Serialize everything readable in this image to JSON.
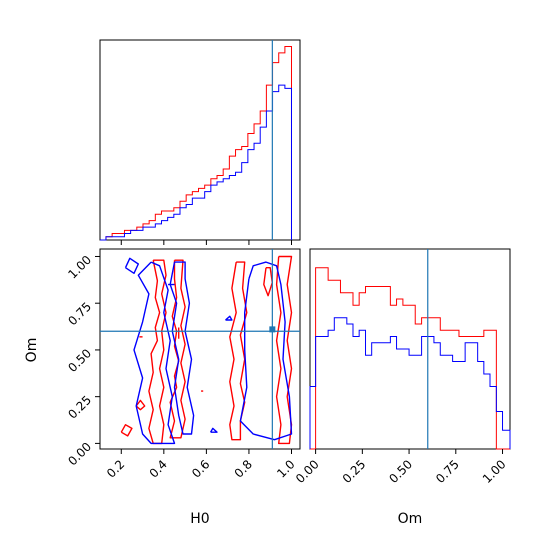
{
  "chart_data": {
    "type": "corner",
    "parameters": [
      "H0",
      "Om"
    ],
    "truths": {
      "H0": 0.91,
      "Om": 0.6
    },
    "colors": {
      "series_a": "#ff0000",
      "series_b": "#0000ff",
      "truth": "#1f77b4",
      "axes": "#000000"
    },
    "panels": [
      {
        "name": "H0-marginal",
        "type": "histogram",
        "xlim": [
          0.1,
          1.04
        ],
        "ylim": [
          0,
          62
        ],
        "bin_edges": [
          0.1,
          0.128,
          0.157,
          0.186,
          0.215,
          0.244,
          0.273,
          0.302,
          0.331,
          0.36,
          0.389,
          0.418,
          0.447,
          0.476,
          0.505,
          0.534,
          0.563,
          0.592,
          0.621,
          0.65,
          0.679,
          0.708,
          0.737,
          0.766,
          0.795,
          0.824,
          0.853,
          0.882,
          0.911,
          0.94,
          0.969,
          1.0
        ],
        "series": [
          {
            "color": "red",
            "counts": [
              0,
              1,
              2,
              2,
              3,
              3,
              4,
              5,
              6,
              8,
              9,
              9,
              10,
              12,
              14,
              15,
              16,
              17,
              19,
              20,
              22,
              26,
              28,
              29,
              33,
              36,
              40,
              48,
              55,
              58,
              60
            ]
          },
          {
            "color": "blue",
            "counts": [
              0,
              1,
              1,
              1,
              2,
              3,
              3,
              4,
              4,
              5,
              6,
              7,
              8,
              10,
              11,
              13,
              13,
              15,
              17,
              18,
              19,
              20,
              21,
              24,
              28,
              30,
              35,
              40,
              46,
              48,
              47
            ]
          }
        ],
        "truth_x": 0.91,
        "x_ticks": [
          0.2,
          0.4,
          0.6,
          0.8,
          1.0
        ]
      },
      {
        "name": "H0-vs-Om-contour",
        "type": "contour",
        "xlim": [
          0.1,
          1.04
        ],
        "ylim": [
          -0.03,
          1.04
        ],
        "x_ticks": [
          "0.2",
          "0.4",
          "0.6",
          "0.8",
          "1.0"
        ],
        "y_ticks": [
          "0.00",
          "0.25",
          "0.50",
          "0.75",
          "1.00"
        ],
        "truth": [
          0.91,
          0.6
        ],
        "marker": [
          0.91,
          0.61
        ],
        "series": [
          {
            "color": "red",
            "contours": [
              [
                [
                  0.35,
                  0.98
                ],
                [
                  0.37,
                  0.87
                ],
                [
                  0.36,
                  0.78
                ],
                [
                  0.38,
                  0.7
                ],
                [
                  0.36,
                  0.62
                ],
                [
                  0.37,
                  0.55
                ],
                [
                  0.34,
                  0.48
                ],
                [
                  0.35,
                  0.38
                ],
                [
                  0.33,
                  0.28
                ],
                [
                  0.35,
                  0.18
                ],
                [
                  0.33,
                  0.08
                ],
                [
                  0.35,
                  0.0
                ],
                [
                  0.39,
                  0.0
                ],
                [
                  0.4,
                  0.1
                ],
                [
                  0.38,
                  0.2
                ],
                [
                  0.4,
                  0.3
                ],
                [
                  0.38,
                  0.4
                ],
                [
                  0.4,
                  0.5
                ],
                [
                  0.39,
                  0.6
                ],
                [
                  0.41,
                  0.7
                ],
                [
                  0.39,
                  0.8
                ],
                [
                  0.41,
                  0.9
                ],
                [
                  0.4,
                  0.98
                ],
                [
                  0.35,
                  0.98
                ]
              ],
              [
                [
                  0.45,
                  0.98
                ],
                [
                  0.45,
                  0.88
                ],
                [
                  0.46,
                  0.78
                ],
                [
                  0.44,
                  0.68
                ],
                [
                  0.46,
                  0.6
                ],
                [
                  0.45,
                  0.52
                ],
                [
                  0.47,
                  0.44
                ],
                [
                  0.45,
                  0.36
                ],
                [
                  0.46,
                  0.3
                ],
                [
                  0.43,
                  0.22
                ],
                [
                  0.45,
                  0.12
                ],
                [
                  0.43,
                  0.03
                ],
                [
                  0.48,
                  0.03
                ],
                [
                  0.5,
                  0.13
                ],
                [
                  0.48,
                  0.23
                ],
                [
                  0.5,
                  0.33
                ],
                [
                  0.48,
                  0.43
                ],
                [
                  0.5,
                  0.53
                ],
                [
                  0.48,
                  0.63
                ],
                [
                  0.5,
                  0.73
                ],
                [
                  0.48,
                  0.83
                ],
                [
                  0.49,
                  0.98
                ],
                [
                  0.45,
                  0.98
                ]
              ],
              [
                [
                  0.74,
                  0.97
                ],
                [
                  0.72,
                  0.83
                ],
                [
                  0.74,
                  0.7
                ],
                [
                  0.71,
                  0.57
                ],
                [
                  0.73,
                  0.45
                ],
                [
                  0.71,
                  0.33
                ],
                [
                  0.73,
                  0.2
                ],
                [
                  0.71,
                  0.1
                ],
                [
                  0.72,
                  0.02
                ],
                [
                  0.76,
                  0.02
                ],
                [
                  0.76,
                  0.12
                ],
                [
                  0.78,
                  0.22
                ],
                [
                  0.76,
                  0.32
                ],
                [
                  0.78,
                  0.45
                ],
                [
                  0.76,
                  0.58
                ],
                [
                  0.79,
                  0.7
                ],
                [
                  0.77,
                  0.83
                ],
                [
                  0.78,
                  0.97
                ],
                [
                  0.74,
                  0.97
                ]
              ],
              [
                [
                  0.94,
                  1.0
                ],
                [
                  0.93,
                  0.85
                ],
                [
                  0.95,
                  0.7
                ],
                [
                  0.93,
                  0.55
                ],
                [
                  0.95,
                  0.4
                ],
                [
                  0.93,
                  0.25
                ],
                [
                  0.95,
                  0.1
                ],
                [
                  0.94,
                  0.0
                ],
                [
                  0.99,
                  0.0
                ],
                [
                  1.0,
                  0.1
                ],
                [
                  0.98,
                  0.25
                ],
                [
                  1.0,
                  0.4
                ],
                [
                  0.98,
                  0.55
                ],
                [
                  1.0,
                  0.7
                ],
                [
                  0.98,
                  0.85
                ],
                [
                  1.0,
                  1.0
                ],
                [
                  0.94,
                  1.0
                ]
              ],
              [
                [
                  0.88,
                  0.94
                ],
                [
                  0.87,
                  0.85
                ],
                [
                  0.89,
                  0.79
                ],
                [
                  0.91,
                  0.86
                ],
                [
                  0.9,
                  0.94
                ],
                [
                  0.88,
                  0.94
                ]
              ],
              [
                [
                  0.2,
                  0.06
                ],
                [
                  0.22,
                  0.1
                ],
                [
                  0.25,
                  0.08
                ],
                [
                  0.23,
                  0.04
                ],
                [
                  0.2,
                  0.06
                ]
              ],
              [
                [
                  0.27,
                  0.2
                ],
                [
                  0.29,
                  0.23
                ],
                [
                  0.31,
                  0.2
                ],
                [
                  0.29,
                  0.18
                ],
                [
                  0.27,
                  0.2
                ]
              ]
            ]
          },
          {
            "color": "blue",
            "contours": [
              [
                [
                  0.34,
                  0.97
                ],
                [
                  0.28,
                  0.9
                ],
                [
                  0.33,
                  0.8
                ],
                [
                  0.3,
                  0.65
                ],
                [
                  0.26,
                  0.5
                ],
                [
                  0.3,
                  0.35
                ],
                [
                  0.27,
                  0.2
                ],
                [
                  0.3,
                  0.05
                ],
                [
                  0.34,
                  0.0
                ],
                [
                  0.45,
                  0.0
                ],
                [
                  0.42,
                  0.1
                ],
                [
                  0.44,
                  0.25
                ],
                [
                  0.41,
                  0.4
                ],
                [
                  0.43,
                  0.55
                ],
                [
                  0.4,
                  0.7
                ],
                [
                  0.42,
                  0.82
                ],
                [
                  0.38,
                  0.95
                ],
                [
                  0.34,
                  0.97
                ]
              ],
              [
                [
                  0.45,
                  0.97
                ],
                [
                  0.43,
                  0.85
                ],
                [
                  0.46,
                  0.75
                ],
                [
                  0.44,
                  0.6
                ],
                [
                  0.47,
                  0.45
                ],
                [
                  0.45,
                  0.3
                ],
                [
                  0.47,
                  0.15
                ],
                [
                  0.49,
                  0.05
                ],
                [
                  0.53,
                  0.05
                ],
                [
                  0.54,
                  0.15
                ],
                [
                  0.51,
                  0.3
                ],
                [
                  0.53,
                  0.45
                ],
                [
                  0.5,
                  0.6
                ],
                [
                  0.52,
                  0.75
                ],
                [
                  0.5,
                  0.88
                ],
                [
                  0.5,
                  0.97
                ],
                [
                  0.45,
                  0.97
                ]
              ],
              [
                [
                  0.8,
                  0.88
                ],
                [
                  0.78,
                  0.7
                ],
                [
                  0.78,
                  0.5
                ],
                [
                  0.79,
                  0.3
                ],
                [
                  0.76,
                  0.12
                ],
                [
                  0.82,
                  0.05
                ],
                [
                  0.92,
                  0.02
                ],
                [
                  1.0,
                  0.05
                ],
                [
                  0.99,
                  0.25
                ],
                [
                  0.96,
                  0.45
                ],
                [
                  0.97,
                  0.65
                ],
                [
                  0.95,
                  0.85
                ],
                [
                  0.93,
                  0.95
                ],
                [
                  0.88,
                  0.97
                ],
                [
                  0.82,
                  0.95
                ],
                [
                  0.8,
                  0.88
                ]
              ],
              [
                [
                  0.22,
                  0.94
                ],
                [
                  0.24,
                  0.99
                ],
                [
                  0.28,
                  0.96
                ],
                [
                  0.26,
                  0.91
                ],
                [
                  0.22,
                  0.94
                ]
              ],
              [
                [
                  0.69,
                  0.66
                ],
                [
                  0.71,
                  0.68
                ],
                [
                  0.72,
                  0.66
                ],
                [
                  0.69,
                  0.66
                ]
              ],
              [
                [
                  0.62,
                  0.06
                ],
                [
                  0.63,
                  0.08
                ],
                [
                  0.65,
                  0.06
                ],
                [
                  0.62,
                  0.06
                ]
              ]
            ]
          }
        ]
      },
      {
        "name": "Om-marginal",
        "type": "histogram",
        "xlim": [
          -0.03,
          1.04
        ],
        "ylim": [
          0,
          32
        ],
        "x_ticks": [
          "0.00",
          "0.25",
          "0.50",
          "0.75",
          "1.00"
        ],
        "bin_edges": [
          -0.03,
          0.0,
          0.033,
          0.067,
          0.1,
          0.133,
          0.167,
          0.2,
          0.233,
          0.267,
          0.3,
          0.333,
          0.367,
          0.4,
          0.433,
          0.467,
          0.5,
          0.533,
          0.567,
          0.6,
          0.633,
          0.667,
          0.7,
          0.733,
          0.767,
          0.8,
          0.833,
          0.867,
          0.9,
          0.933,
          0.967,
          1.0,
          1.04
        ],
        "series": [
          {
            "color": "red",
            "counts": [
              0,
              29,
              29,
              27,
              27,
              25,
              25,
              23,
              25,
              26,
              26,
              26,
              26,
              23,
              24,
              23,
              23,
              20,
              21,
              21,
              21,
              19,
              19,
              19,
              18,
              18,
              18,
              18,
              19,
              19,
              0,
              0
            ]
          },
          {
            "color": "blue",
            "counts": [
              10,
              18,
              18,
              19,
              21,
              21,
              20,
              18,
              19,
              15,
              17,
              17,
              17,
              18,
              16,
              16,
              15,
              15,
              18,
              18,
              17,
              15,
              15,
              14,
              14,
              17,
              17,
              14,
              12,
              10,
              6,
              3
            ]
          }
        ],
        "truth_x": 0.6
      }
    ],
    "xlabels": [
      "H0",
      "Om"
    ],
    "ylabels": [
      "",
      "Om"
    ]
  }
}
